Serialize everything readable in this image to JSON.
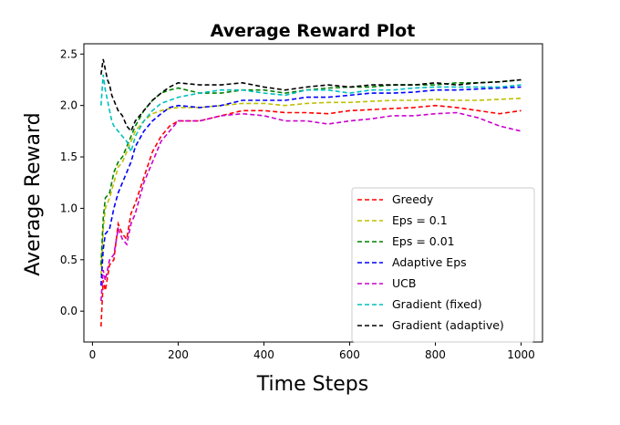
{
  "chart_data": {
    "type": "line",
    "title": "Average Reward Plot",
    "xlabel": "Time Steps",
    "ylabel": "Average Reward",
    "xlim": [
      -20,
      1050
    ],
    "ylim": [
      -0.3,
      2.6
    ],
    "xticks": [
      0,
      200,
      400,
      600,
      800,
      1000
    ],
    "xtick_labels": [
      "0",
      "200",
      "400",
      "600",
      "800",
      "1000"
    ],
    "yticks": [
      0.0,
      0.5,
      1.0,
      1.5,
      2.0,
      2.5
    ],
    "ytick_labels": [
      "0.0",
      "0.5",
      "1.0",
      "1.5",
      "2.0",
      "2.5"
    ],
    "grid": false,
    "legend_position": "lower-right",
    "line_style": "dashed",
    "series": [
      {
        "name": "Greedy",
        "color": "#ff0000",
        "x": [
          20,
          25,
          30,
          40,
          50,
          60,
          70,
          80,
          90,
          100,
          120,
          140,
          160,
          180,
          200,
          250,
          300,
          350,
          400,
          450,
          500,
          550,
          600,
          650,
          700,
          750,
          800,
          850,
          900,
          950,
          1000
        ],
        "y": [
          -0.15,
          0.3,
          0.2,
          0.45,
          0.5,
          0.85,
          0.75,
          0.7,
          0.95,
          1.05,
          1.3,
          1.55,
          1.7,
          1.8,
          1.85,
          1.85,
          1.9,
          1.95,
          1.95,
          1.93,
          1.93,
          1.92,
          1.95,
          1.96,
          1.97,
          1.98,
          2.0,
          1.98,
          1.95,
          1.92,
          1.95
        ]
      },
      {
        "name": "Eps = 0.1",
        "color": "#bfbf00",
        "x": [
          20,
          25,
          30,
          40,
          50,
          60,
          70,
          80,
          90,
          100,
          120,
          140,
          160,
          180,
          200,
          250,
          300,
          350,
          400,
          450,
          500,
          550,
          600,
          650,
          700,
          750,
          800,
          850,
          900,
          950,
          1000
        ],
        "y": [
          0.35,
          0.8,
          1.0,
          1.1,
          1.25,
          1.4,
          1.45,
          1.55,
          1.65,
          1.75,
          1.85,
          1.92,
          1.95,
          1.97,
          1.98,
          1.98,
          2.0,
          2.02,
          2.02,
          2.0,
          2.02,
          2.03,
          2.03,
          2.04,
          2.05,
          2.05,
          2.06,
          2.05,
          2.05,
          2.06,
          2.07
        ]
      },
      {
        "name": "Eps = 0.01",
        "color": "#008000",
        "x": [
          20,
          25,
          30,
          40,
          50,
          60,
          70,
          80,
          90,
          100,
          120,
          140,
          160,
          180,
          200,
          250,
          300,
          350,
          400,
          450,
          500,
          550,
          600,
          650,
          700,
          750,
          800,
          850,
          900,
          950,
          1000
        ],
        "y": [
          0.45,
          0.9,
          1.1,
          1.15,
          1.35,
          1.45,
          1.5,
          1.6,
          1.7,
          1.8,
          1.95,
          2.05,
          2.12,
          2.15,
          2.17,
          2.12,
          2.12,
          2.15,
          2.15,
          2.12,
          2.15,
          2.17,
          2.18,
          2.18,
          2.2,
          2.2,
          2.2,
          2.22,
          2.22,
          2.23,
          2.25
        ]
      },
      {
        "name": "Adaptive Eps",
        "color": "#0000ff",
        "x": [
          20,
          25,
          30,
          40,
          50,
          60,
          70,
          80,
          90,
          100,
          120,
          140,
          160,
          180,
          200,
          250,
          300,
          350,
          400,
          450,
          500,
          550,
          600,
          650,
          700,
          750,
          800,
          850,
          900,
          950,
          1000
        ],
        "y": [
          0.25,
          0.6,
          0.75,
          0.8,
          1.0,
          1.15,
          1.25,
          1.35,
          1.45,
          1.6,
          1.75,
          1.85,
          1.92,
          1.98,
          2.0,
          1.98,
          2.0,
          2.05,
          2.05,
          2.05,
          2.08,
          2.08,
          2.1,
          2.12,
          2.12,
          2.13,
          2.15,
          2.15,
          2.16,
          2.17,
          2.18
        ]
      },
      {
        "name": "UCB",
        "color": "#cc00cc",
        "x": [
          20,
          25,
          30,
          40,
          50,
          60,
          70,
          80,
          90,
          100,
          120,
          140,
          160,
          180,
          200,
          250,
          300,
          350,
          400,
          450,
          500,
          550,
          600,
          650,
          700,
          750,
          800,
          850,
          900,
          950,
          1000
        ],
        "y": [
          0.1,
          0.4,
          0.3,
          0.5,
          0.55,
          0.8,
          0.7,
          0.65,
          0.85,
          0.95,
          1.25,
          1.45,
          1.65,
          1.75,
          1.85,
          1.85,
          1.9,
          1.92,
          1.9,
          1.85,
          1.85,
          1.82,
          1.85,
          1.87,
          1.9,
          1.9,
          1.92,
          1.93,
          1.88,
          1.8,
          1.75
        ]
      },
      {
        "name": "Gradient (fixed)",
        "color": "#00bfbf",
        "x": [
          20,
          25,
          30,
          35,
          40,
          45,
          50,
          60,
          70,
          80,
          90,
          100,
          120,
          140,
          160,
          180,
          200,
          250,
          300,
          350,
          400,
          450,
          500,
          550,
          600,
          650,
          700,
          750,
          800,
          850,
          900,
          950,
          1000
        ],
        "y": [
          2.0,
          2.3,
          2.15,
          2.05,
          1.95,
          1.85,
          1.8,
          1.75,
          1.7,
          1.65,
          1.55,
          1.7,
          1.85,
          1.95,
          2.02,
          2.05,
          2.08,
          2.12,
          2.15,
          2.15,
          2.12,
          2.1,
          2.15,
          2.15,
          2.12,
          2.15,
          2.15,
          2.17,
          2.18,
          2.18,
          2.18,
          2.18,
          2.2
        ]
      },
      {
        "name": "Gradient (adaptive)",
        "color": "#000000",
        "x": [
          20,
          25,
          30,
          35,
          40,
          45,
          50,
          60,
          70,
          80,
          90,
          100,
          120,
          140,
          160,
          180,
          200,
          250,
          300,
          350,
          400,
          450,
          500,
          550,
          600,
          650,
          700,
          750,
          800,
          850,
          900,
          950,
          1000
        ],
        "y": [
          2.3,
          2.45,
          2.35,
          2.25,
          2.2,
          2.1,
          2.05,
          1.95,
          1.9,
          1.8,
          1.75,
          1.85,
          1.95,
          2.05,
          2.12,
          2.18,
          2.22,
          2.2,
          2.2,
          2.22,
          2.18,
          2.15,
          2.18,
          2.2,
          2.18,
          2.2,
          2.2,
          2.2,
          2.22,
          2.2,
          2.22,
          2.23,
          2.25
        ]
      }
    ]
  }
}
